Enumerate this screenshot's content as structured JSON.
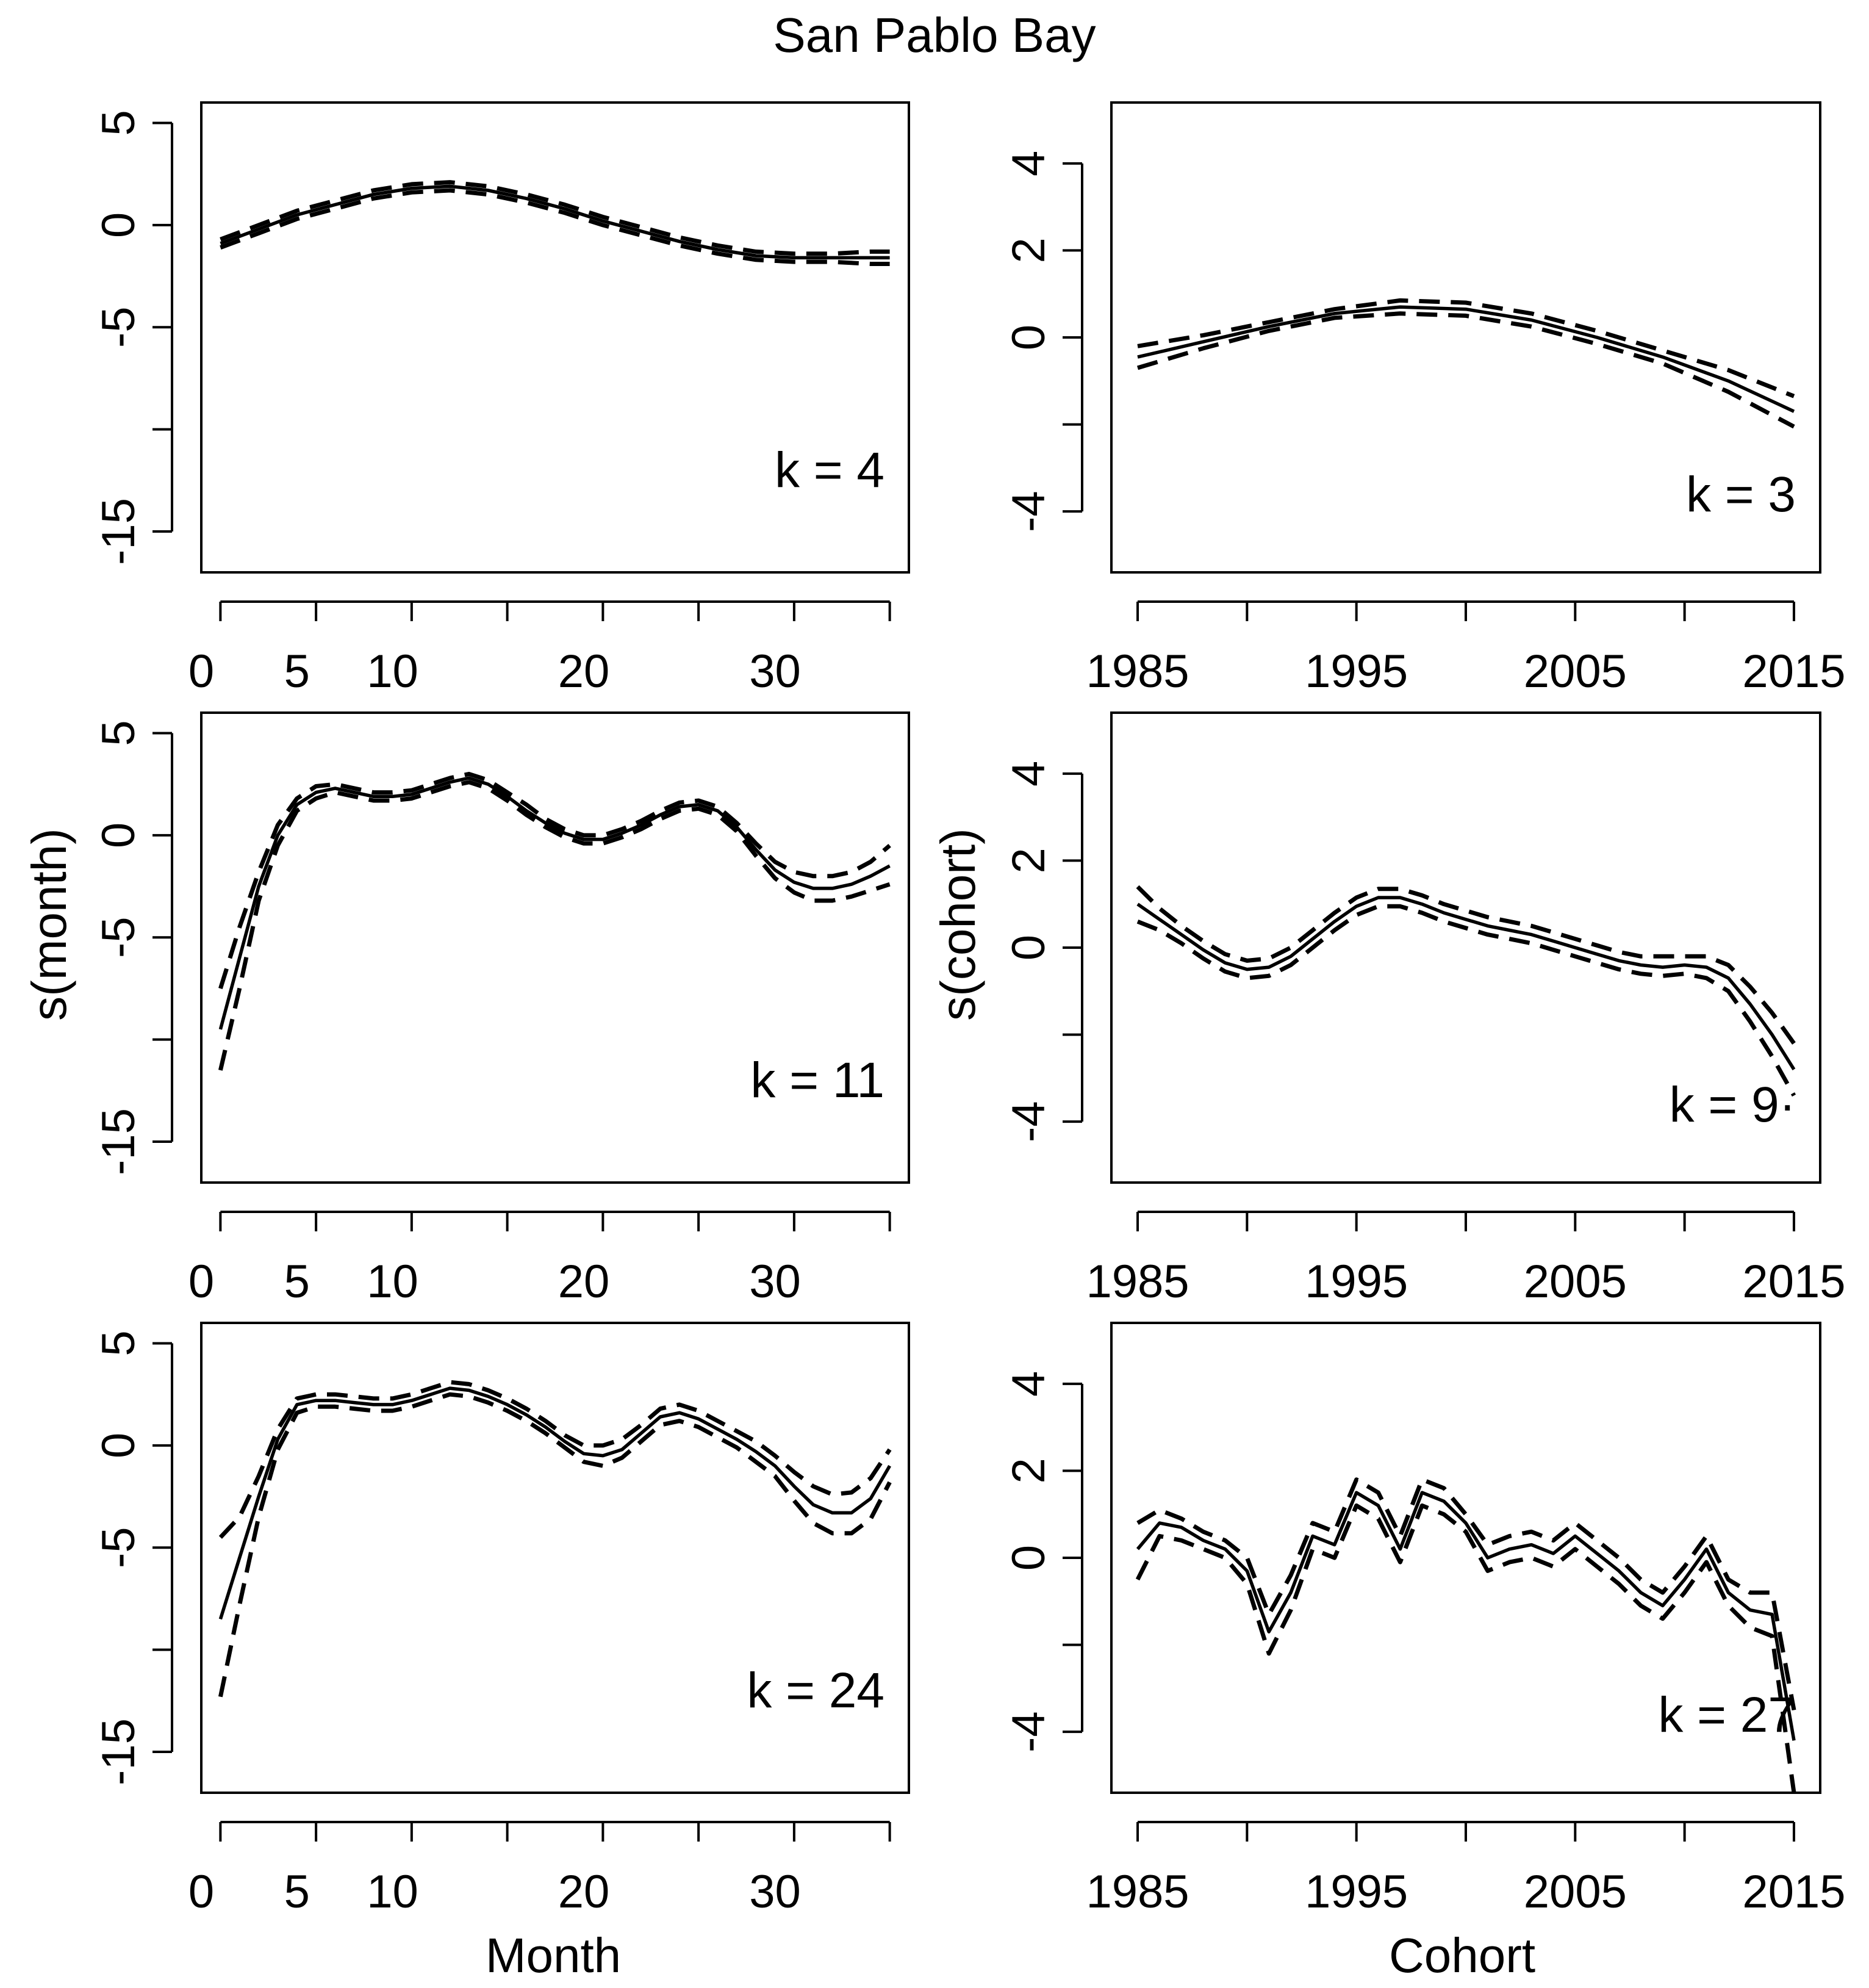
{
  "title": "San Pablo Bay",
  "month_axis": {
    "label": "Month",
    "ylabel": "s(month)",
    "xticks": [
      0,
      5,
      10,
      20,
      30
    ],
    "yticks": [
      5,
      0,
      -5,
      -15
    ]
  },
  "cohort_axis": {
    "label": "Cohort",
    "ylabel": "s(cohort)",
    "xticks": [
      1985,
      1995,
      2005,
      2015
    ],
    "yticks": [
      4,
      2,
      0,
      -4
    ]
  },
  "chart_data": [
    {
      "type": "line",
      "id": "month-k4",
      "k_label": "k = 4",
      "xlim": [
        0,
        37
      ],
      "ylim": [
        -17,
        6
      ],
      "x": [
        1,
        3,
        5,
        7,
        9,
        11,
        13,
        15,
        17,
        19,
        21,
        23,
        25,
        27,
        29,
        31,
        33,
        35,
        36
      ],
      "series": [
        {
          "name": "fit",
          "values": [
            -0.9,
            -0.2,
            0.5,
            1.0,
            1.5,
            1.8,
            1.9,
            1.7,
            1.3,
            0.8,
            0.2,
            -0.3,
            -0.8,
            -1.2,
            -1.5,
            -1.6,
            -1.6,
            -1.6,
            -1.6
          ]
        },
        {
          "name": "upper",
          "values": [
            -0.7,
            0.0,
            0.7,
            1.2,
            1.7,
            2.0,
            2.1,
            1.9,
            1.5,
            1.0,
            0.4,
            -0.1,
            -0.6,
            -1.0,
            -1.3,
            -1.4,
            -1.4,
            -1.3,
            -1.3
          ]
        },
        {
          "name": "lower",
          "values": [
            -1.1,
            -0.4,
            0.3,
            0.8,
            1.3,
            1.6,
            1.7,
            1.5,
            1.1,
            0.6,
            0.0,
            -0.5,
            -1.0,
            -1.4,
            -1.7,
            -1.8,
            -1.8,
            -1.9,
            -1.9
          ]
        }
      ]
    },
    {
      "type": "line",
      "id": "cohort-k3",
      "k_label": "k = 3",
      "xlim": [
        1983.8,
        2016.2
      ],
      "ylim": [
        -5.4,
        5.4
      ],
      "x": [
        1985,
        1988,
        1991,
        1994,
        1997,
        2000,
        2003,
        2006,
        2009,
        2012,
        2015
      ],
      "series": [
        {
          "name": "fit",
          "values": [
            -0.45,
            -0.1,
            0.25,
            0.55,
            0.7,
            0.65,
            0.4,
            0.0,
            -0.45,
            -1.0,
            -1.7
          ]
        },
        {
          "name": "upper",
          "values": [
            -0.2,
            0.05,
            0.35,
            0.65,
            0.85,
            0.8,
            0.55,
            0.15,
            -0.3,
            -0.75,
            -1.35
          ]
        },
        {
          "name": "lower",
          "values": [
            -0.7,
            -0.25,
            0.15,
            0.45,
            0.55,
            0.5,
            0.25,
            -0.15,
            -0.6,
            -1.25,
            -2.05
          ]
        }
      ]
    },
    {
      "type": "line",
      "id": "month-k11",
      "k_label": "k = 11",
      "xlim": [
        0,
        37
      ],
      "ylim": [
        -17,
        6
      ],
      "x": [
        1,
        2,
        3,
        4,
        5,
        6,
        7,
        8,
        9,
        10,
        11,
        12,
        13,
        14,
        15,
        16,
        17,
        18,
        19,
        20,
        21,
        22,
        23,
        24,
        25,
        26,
        27,
        28,
        29,
        30,
        31,
        32,
        33,
        34,
        35,
        36
      ],
      "series": [
        {
          "name": "fit",
          "values": [
            -9.5,
            -6,
            -2.5,
            0,
            1.5,
            2.1,
            2.3,
            2.1,
            1.9,
            1.9,
            2.0,
            2.3,
            2.6,
            2.8,
            2.5,
            1.9,
            1.2,
            0.6,
            0.1,
            -0.2,
            -0.2,
            0.1,
            0.5,
            1.0,
            1.4,
            1.5,
            1.2,
            0.4,
            -0.7,
            -1.7,
            -2.3,
            -2.6,
            -2.6,
            -2.4,
            -2.0,
            -1.5
          ]
        },
        {
          "name": "upper",
          "values": [
            -7.5,
            -4.5,
            -1.8,
            0.5,
            1.8,
            2.4,
            2.5,
            2.3,
            2.1,
            2.1,
            2.2,
            2.5,
            2.8,
            3.0,
            2.7,
            2.1,
            1.5,
            0.8,
            0.3,
            0.0,
            0.0,
            0.3,
            0.7,
            1.2,
            1.6,
            1.7,
            1.4,
            0.6,
            -0.4,
            -1.3,
            -1.8,
            -2.0,
            -2.0,
            -1.8,
            -1.3,
            -0.5
          ]
        },
        {
          "name": "lower",
          "values": [
            -11.5,
            -7.5,
            -3.2,
            -0.5,
            1.2,
            1.8,
            2.1,
            1.9,
            1.7,
            1.7,
            1.8,
            2.1,
            2.4,
            2.6,
            2.3,
            1.7,
            1.0,
            0.4,
            -0.1,
            -0.4,
            -0.4,
            -0.1,
            0.3,
            0.8,
            1.2,
            1.3,
            1.0,
            0.2,
            -1.0,
            -2.1,
            -2.8,
            -3.2,
            -3.2,
            -3.0,
            -2.7,
            -2.4
          ]
        }
      ]
    },
    {
      "type": "line",
      "id": "cohort-k9",
      "k_label": "k = 9·",
      "xlim": [
        1983.8,
        2016.2
      ],
      "ylim": [
        -5.4,
        5.4
      ],
      "x": [
        1985,
        1986,
        1987,
        1988,
        1989,
        1990,
        1991,
        1992,
        1993,
        1994,
        1995,
        1996,
        1997,
        1998,
        1999,
        2000,
        2001,
        2002,
        2003,
        2004,
        2005,
        2006,
        2007,
        2008,
        2009,
        2010,
        2011,
        2012,
        2013,
        2014,
        2015
      ],
      "series": [
        {
          "name": "fit",
          "values": [
            1.0,
            0.65,
            0.3,
            -0.05,
            -0.35,
            -0.5,
            -0.45,
            -0.2,
            0.2,
            0.6,
            0.95,
            1.15,
            1.15,
            1.0,
            0.8,
            0.65,
            0.5,
            0.4,
            0.3,
            0.15,
            0.0,
            -0.15,
            -0.3,
            -0.4,
            -0.45,
            -0.4,
            -0.45,
            -0.7,
            -1.3,
            -2.0,
            -2.8
          ]
        },
        {
          "name": "upper",
          "values": [
            1.4,
            0.9,
            0.5,
            0.15,
            -0.15,
            -0.3,
            -0.25,
            0.0,
            0.4,
            0.8,
            1.15,
            1.35,
            1.35,
            1.2,
            1.0,
            0.85,
            0.7,
            0.6,
            0.5,
            0.35,
            0.2,
            0.05,
            -0.1,
            -0.2,
            -0.2,
            -0.2,
            -0.2,
            -0.4,
            -0.9,
            -1.5,
            -2.2
          ]
        },
        {
          "name": "lower",
          "values": [
            0.6,
            0.4,
            0.1,
            -0.25,
            -0.55,
            -0.7,
            -0.65,
            -0.4,
            0.0,
            0.4,
            0.75,
            0.95,
            0.95,
            0.8,
            0.6,
            0.45,
            0.3,
            0.2,
            0.1,
            -0.05,
            -0.2,
            -0.35,
            -0.5,
            -0.6,
            -0.65,
            -0.6,
            -0.7,
            -1.0,
            -1.7,
            -2.5,
            -3.4
          ]
        }
      ]
    },
    {
      "type": "line",
      "id": "month-k24",
      "k_label": "k = 24",
      "xlim": [
        0,
        37
      ],
      "ylim": [
        -17,
        6
      ],
      "x": [
        1,
        2,
        3,
        4,
        5,
        6,
        7,
        8,
        9,
        10,
        11,
        12,
        13,
        14,
        15,
        16,
        17,
        18,
        19,
        20,
        21,
        22,
        23,
        24,
        25,
        26,
        27,
        28,
        29,
        30,
        31,
        32,
        33,
        34,
        35,
        36
      ],
      "series": [
        {
          "name": "fit",
          "values": [
            -8.5,
            -5.5,
            -2.5,
            0.3,
            2.0,
            2.2,
            2.2,
            2.1,
            2.0,
            2.0,
            2.2,
            2.5,
            2.8,
            2.7,
            2.4,
            2.0,
            1.5,
            0.9,
            0.2,
            -0.4,
            -0.5,
            -0.2,
            0.6,
            1.4,
            1.6,
            1.3,
            0.8,
            0.3,
            -0.3,
            -1.0,
            -2.0,
            -2.9,
            -3.3,
            -3.3,
            -2.6,
            -1.0
          ]
        },
        {
          "name": "upper",
          "values": [
            -4.5,
            -3.5,
            -1.5,
            0.8,
            2.3,
            2.5,
            2.5,
            2.4,
            2.3,
            2.3,
            2.5,
            2.8,
            3.1,
            3.0,
            2.7,
            2.3,
            1.8,
            1.2,
            0.5,
            0.0,
            0.0,
            0.3,
            1.0,
            1.8,
            2.0,
            1.7,
            1.2,
            0.7,
            0.2,
            -0.5,
            -1.3,
            -2.0,
            -2.4,
            -2.3,
            -1.6,
            -0.2
          ]
        },
        {
          "name": "lower",
          "values": [
            -12.3,
            -7.8,
            -3.5,
            -0.2,
            1.6,
            1.9,
            1.9,
            1.8,
            1.7,
            1.7,
            1.9,
            2.2,
            2.5,
            2.4,
            2.1,
            1.7,
            1.2,
            0.6,
            -0.1,
            -0.8,
            -1.0,
            -0.6,
            0.2,
            1.0,
            1.2,
            0.9,
            0.4,
            -0.1,
            -0.8,
            -1.5,
            -2.7,
            -3.8,
            -4.3,
            -4.3,
            -3.6,
            -1.8
          ]
        }
      ]
    },
    {
      "type": "line",
      "id": "cohort-k27",
      "k_label": "k = 27",
      "xlim": [
        1983.8,
        2016.2
      ],
      "ylim": [
        -5.4,
        5.4
      ],
      "x": [
        1985,
        1986,
        1987,
        1988,
        1989,
        1990,
        1991,
        1992,
        1993,
        1994,
        1995,
        1996,
        1997,
        1998,
        1999,
        2000,
        2001,
        2002,
        2003,
        2004,
        2005,
        2006,
        2007,
        2008,
        2009,
        2010,
        2011,
        2012,
        2013,
        2014,
        2015
      ],
      "series": [
        {
          "name": "fit",
          "values": [
            0.2,
            0.8,
            0.7,
            0.4,
            0.2,
            -0.3,
            -1.7,
            -0.8,
            0.5,
            0.3,
            1.5,
            1.2,
            0.2,
            1.5,
            1.3,
            0.8,
            0.0,
            0.2,
            0.3,
            0.1,
            0.5,
            0.1,
            -0.3,
            -0.8,
            -1.1,
            -0.5,
            0.2,
            -0.8,
            -1.2,
            -1.3,
            -4.2
          ]
        },
        {
          "name": "upper",
          "values": [
            0.8,
            1.1,
            0.9,
            0.6,
            0.4,
            0.0,
            -1.3,
            -0.4,
            0.8,
            0.6,
            1.8,
            1.5,
            0.5,
            1.8,
            1.6,
            1.0,
            0.3,
            0.5,
            0.6,
            0.4,
            0.8,
            0.4,
            0.0,
            -0.5,
            -0.8,
            -0.2,
            0.5,
            -0.5,
            -0.8,
            -0.8,
            -3.5
          ]
        },
        {
          "name": "lower",
          "values": [
            -0.5,
            0.5,
            0.4,
            0.2,
            0.0,
            -0.6,
            -2.2,
            -1.2,
            0.2,
            0.0,
            1.2,
            0.9,
            -0.1,
            1.2,
            1.0,
            0.6,
            -0.3,
            -0.1,
            0.0,
            -0.2,
            0.2,
            -0.2,
            -0.6,
            -1.1,
            -1.4,
            -0.8,
            -0.1,
            -1.1,
            -1.6,
            -1.8,
            -5.4
          ]
        }
      ]
    }
  ]
}
